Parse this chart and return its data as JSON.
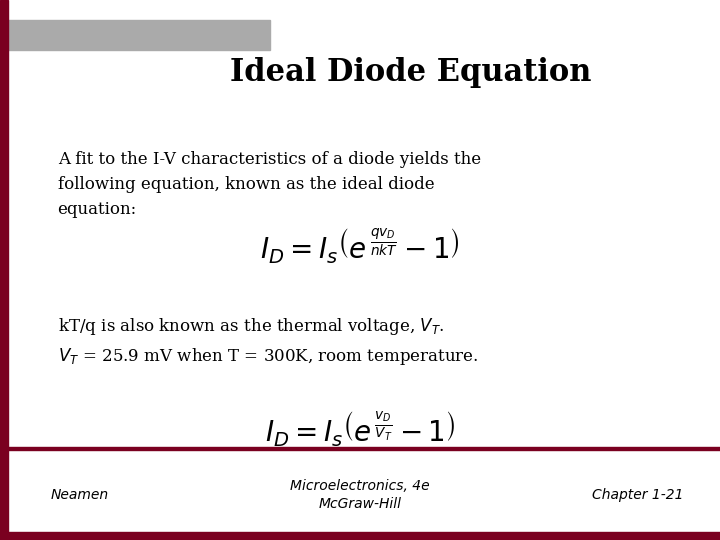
{
  "title": "Ideal Diode Equation",
  "title_fontsize": 22,
  "bg_color": "#ffffff",
  "border_color": "#7a0020",
  "header_bar_color": "#aaaaaa",
  "body_text_1": "A fit to the I-V characteristics of a diode yields the\nfollowing equation, known as the ideal diode\nequation:",
  "body_fontsize": 12,
  "eq1_fontsize": 18,
  "footer_left": "Neamen",
  "footer_center": "Microelectronics, 4e\nMcGraw-Hill",
  "footer_right": "Chapter 1-21",
  "footer_fontsize": 10
}
